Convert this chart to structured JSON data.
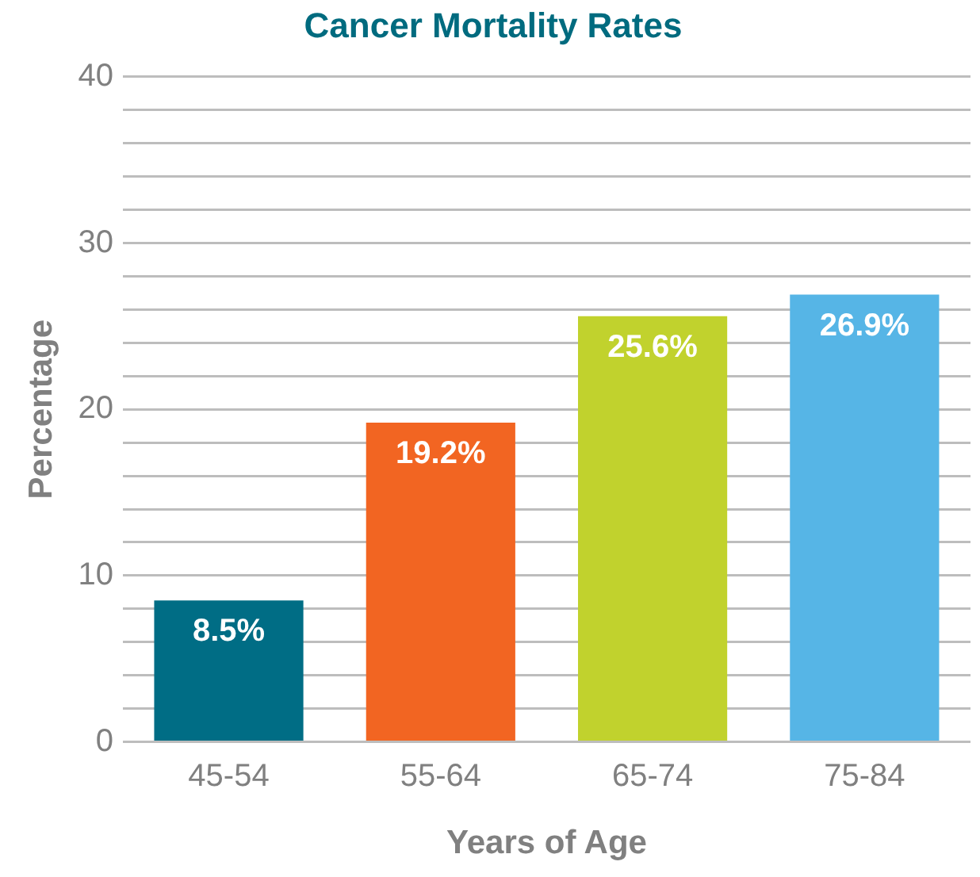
{
  "chart_data": {
    "type": "bar",
    "title": "Cancer Mortality Rates",
    "xlabel": "Years of Age",
    "ylabel": "Percentage",
    "categories": [
      "45-54",
      "55-64",
      "65-74",
      "75-84"
    ],
    "values": [
      8.5,
      19.2,
      25.6,
      26.9
    ],
    "colors": [
      "#006d85",
      "#f26522",
      "#c1d22d",
      "#56b5e6"
    ],
    "value_labels": [
      "8.5%",
      "19.2%",
      "25.6%",
      "26.9%"
    ],
    "ylim": [
      0,
      40
    ],
    "yticks": [
      0,
      {
        "value": 2,
        "label": null
      },
      {
        "value": 4,
        "label": null
      },
      {
        "value": 6,
        "label": null
      },
      {
        "value": 8,
        "label": null
      },
      10,
      {
        "value": 12,
        "label": null
      },
      {
        "value": 14,
        "label": null
      },
      {
        "value": 16,
        "label": null
      },
      {
        "value": 18,
        "label": null
      },
      20,
      {
        "value": 22,
        "label": null
      },
      {
        "value": 24,
        "label": null
      },
      {
        "value": 26,
        "label": null
      },
      {
        "value": 28,
        "label": null
      },
      30,
      {
        "value": 32,
        "label": null
      },
      {
        "value": 34,
        "label": null
      },
      {
        "value": 36,
        "label": null
      },
      {
        "value": 38,
        "label": null
      },
      40
    ],
    "grid": "y",
    "legend": false
  }
}
